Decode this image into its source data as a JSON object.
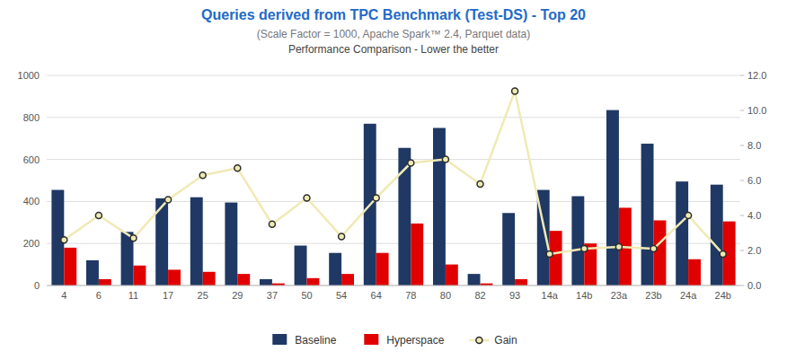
{
  "chart_data": {
    "type": "bar",
    "title": "Queries derived from TPC Benchmark (Test-DS) - Top 20",
    "subtitle": [
      "(Scale Factor = 1000, Apache Spark™ 2.4, Parquet data)",
      "Performance Comparison - Lower the better"
    ],
    "categories": [
      "4",
      "6",
      "11",
      "17",
      "25",
      "29",
      "37",
      "50",
      "54",
      "64",
      "78",
      "80",
      "82",
      "93",
      "14a",
      "14b",
      "23a",
      "23b",
      "24a",
      "24b"
    ],
    "series": [
      {
        "name": "Baseline",
        "color": "#1F3864",
        "values": [
          455,
          120,
          255,
          415,
          420,
          395,
          30,
          190,
          155,
          770,
          655,
          750,
          55,
          345,
          455,
          425,
          835,
          675,
          495,
          480
        ]
      },
      {
        "name": "Hyperspace",
        "color": "#E00000",
        "values": [
          180,
          30,
          95,
          75,
          65,
          55,
          10,
          35,
          55,
          155,
          295,
          100,
          10,
          30,
          260,
          200,
          370,
          310,
          125,
          305
        ]
      },
      {
        "name": "Gain",
        "type": "line",
        "axis": "y2",
        "color": "#F0EAB4",
        "marker": "circle",
        "values": [
          2.6,
          4.0,
          2.7,
          4.9,
          6.3,
          6.7,
          3.5,
          5.0,
          2.8,
          5.0,
          7.0,
          7.2,
          5.8,
          11.1,
          1.8,
          2.1,
          2.2,
          2.1,
          4.0,
          1.8
        ]
      }
    ],
    "ylim": [
      0,
      1000
    ],
    "yticks": [
      0,
      200,
      400,
      600,
      800,
      1000
    ],
    "y2lim": [
      0.0,
      12.0
    ],
    "y2ticks": [
      {
        "value": 0,
        "label": "0.0"
      },
      {
        "value": 2,
        "label": "2.0"
      },
      {
        "value": 4,
        "label": "4.0"
      },
      {
        "value": 6,
        "label": "6.0"
      },
      {
        "value": 8,
        "label": "8.0"
      },
      {
        "value": 10,
        "label": "10.0"
      },
      {
        "value": 12,
        "label": "12.0"
      }
    ],
    "grid": true,
    "legend": "bottom"
  }
}
